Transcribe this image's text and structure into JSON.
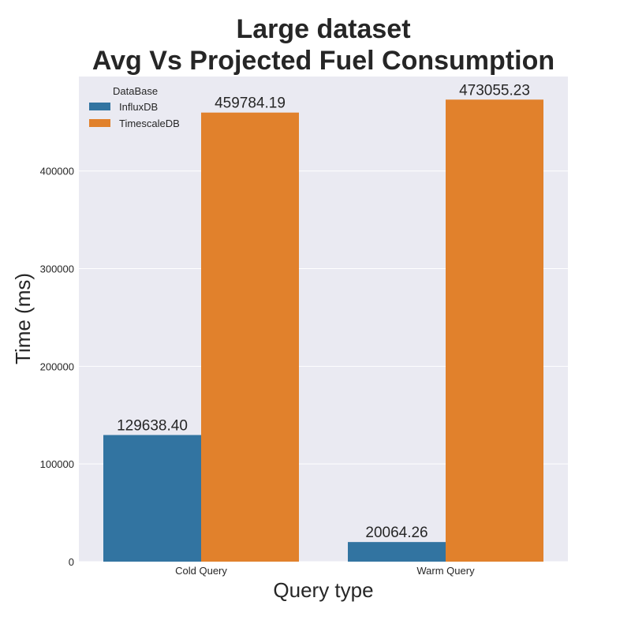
{
  "chart_data": {
    "type": "bar",
    "title_line1": "Large dataset",
    "title_line2": "Avg Vs Projected Fuel Consumption",
    "xlabel": "Query type",
    "ylabel": "Time (ms)",
    "categories": [
      "Cold Query",
      "Warm Query"
    ],
    "series": [
      {
        "name": "InfluxDB",
        "color": "#3274a1",
        "values": [
          129638.4,
          20064.26
        ],
        "labels": [
          "129638.40",
          "20064.26"
        ]
      },
      {
        "name": "TimescaleDB",
        "color": "#e1812c",
        "values": [
          459784.19,
          473055.23
        ],
        "labels": [
          "459784.19",
          "473055.23"
        ]
      }
    ],
    "legend_title": "DataBase",
    "legend_position": "top-left",
    "ylim": [
      0,
      496700
    ],
    "yticks": [
      0,
      100000,
      200000,
      300000,
      400000
    ],
    "ytick_labels": [
      "0",
      "100000",
      "200000",
      "300000",
      "400000"
    ],
    "grid": "horizontal",
    "plot_background": "#eaeaf2"
  }
}
